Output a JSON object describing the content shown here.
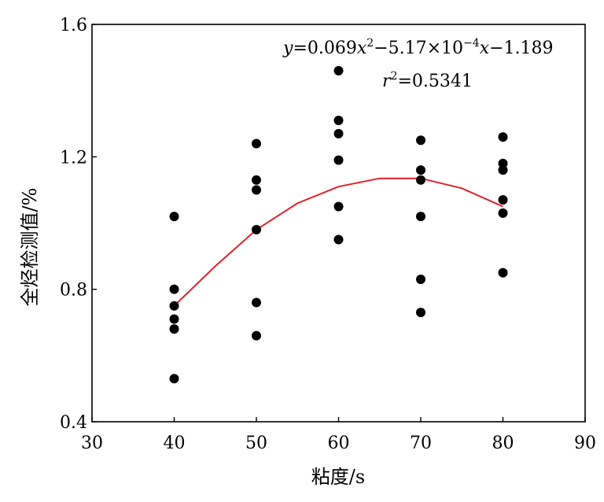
{
  "chart_data": {
    "type": "scatter",
    "xlabel": "粘度/s",
    "ylabel": "全烃检测值/%",
    "xlim": [
      30,
      90
    ],
    "ylim": [
      0.4,
      1.6
    ],
    "x_ticks": [
      "30",
      "40",
      "50",
      "60",
      "70",
      "80",
      "90"
    ],
    "y_ticks": [
      "0.4",
      "0.8",
      "1.2",
      "1.6"
    ],
    "x_tick_values": [
      30,
      40,
      50,
      60,
      70,
      80,
      90
    ],
    "y_tick_values": [
      0.4,
      0.8,
      1.2,
      1.6
    ],
    "grid": false,
    "point_color": "#000000",
    "fit_color": "#e0202a",
    "points": [
      {
        "x": 40,
        "y": 1.02
      },
      {
        "x": 40,
        "y": 0.8
      },
      {
        "x": 40,
        "y": 0.75
      },
      {
        "x": 40,
        "y": 0.71
      },
      {
        "x": 40,
        "y": 0.68
      },
      {
        "x": 40,
        "y": 0.53
      },
      {
        "x": 50,
        "y": 1.24
      },
      {
        "x": 50,
        "y": 1.13
      },
      {
        "x": 50,
        "y": 1.1
      },
      {
        "x": 50,
        "y": 0.98
      },
      {
        "x": 50,
        "y": 0.76
      },
      {
        "x": 50,
        "y": 0.66
      },
      {
        "x": 60,
        "y": 1.46
      },
      {
        "x": 60,
        "y": 1.31
      },
      {
        "x": 60,
        "y": 1.27
      },
      {
        "x": 60,
        "y": 1.19
      },
      {
        "x": 60,
        "y": 1.05
      },
      {
        "x": 60,
        "y": 0.95
      },
      {
        "x": 70,
        "y": 1.25
      },
      {
        "x": 70,
        "y": 1.16
      },
      {
        "x": 70,
        "y": 1.13
      },
      {
        "x": 70,
        "y": 1.02
      },
      {
        "x": 70,
        "y": 0.83
      },
      {
        "x": 70,
        "y": 0.73
      },
      {
        "x": 80,
        "y": 1.26
      },
      {
        "x": 80,
        "y": 1.18
      },
      {
        "x": 80,
        "y": 1.16
      },
      {
        "x": 80,
        "y": 1.07
      },
      {
        "x": 80,
        "y": 1.03
      },
      {
        "x": 80,
        "y": 0.85
      }
    ],
    "fit": {
      "x": [
        40,
        45,
        50,
        55,
        60,
        65,
        70,
        75,
        80
      ],
      "y": [
        0.75,
        0.87,
        0.98,
        1.06,
        1.11,
        1.135,
        1.135,
        1.105,
        1.05
      ]
    },
    "annotations": {
      "equation": {
        "y_sym": "y",
        "a": "=0.069",
        "x1": "x",
        "p2": "2",
        "b": "−5.17×10",
        "e": "−4",
        "x2": "x",
        "c": "−1.189"
      },
      "r2": {
        "r_sym": "r",
        "p2": "2",
        "val": "=0.5341"
      }
    }
  }
}
